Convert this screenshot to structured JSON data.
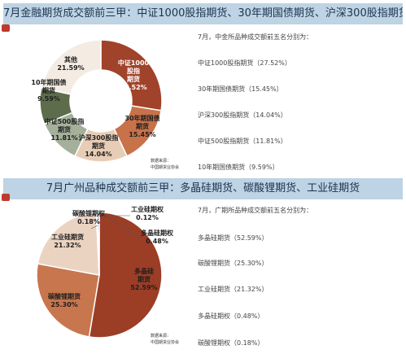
{
  "panel1": {
    "title": "7月金融期货成交额前三甲：中证1000股指期货、30年期国债期货、沪深300股指期货",
    "intro": "7月，中金所品种成交额前五名分别为：",
    "list": [
      "中证1000股指期货（27.52%）",
      "30年期国债期货（15.45%）",
      "沪深300股指期货（14.04%）",
      "中证500股指期货（11.81%）",
      "10年期国债期货（9.59%）"
    ],
    "source_label": "数据来源：",
    "source_value": "中国期货业协会"
  },
  "panel2": {
    "title": "7月广州品种成交额前三甲：多晶硅期货、碳酸锂期货、工业硅期货",
    "intro": "7月，广期所品种成交额前五名分别为：",
    "list": [
      "多晶硅期货（52.59%）",
      "碳酸锂期货（25.30%）",
      "工业硅期货（21.32%）",
      "多晶硅期权（0.48%）",
      "碳酸锂期权（0.18%）"
    ],
    "source_label": "数据来源：",
    "source_value": "中国期货业协会"
  },
  "chart_data": [
    {
      "type": "pie",
      "donut": true,
      "title": "",
      "slices": [
        {
          "name": "中证1000股指期货",
          "value": 27.52,
          "label": "27.52%",
          "color": "#a0432a",
          "label_color": "#ffffff"
        },
        {
          "name": "30年期国债期货",
          "value": 15.45,
          "label": "15.45%",
          "color": "#c8724a",
          "label_color": "#1f1f1f"
        },
        {
          "name": "沪深300股指期货",
          "value": 14.04,
          "label": "14.04%",
          "color": "#e8cdb6",
          "label_color": "#1f1f1f"
        },
        {
          "name": "中证500股指期货",
          "value": 11.81,
          "label": "11.81%",
          "color": "#a4b09a",
          "label_color": "#1f1f1f"
        },
        {
          "name": "10年期国债期货",
          "value": 9.59,
          "label": "9.59%",
          "color": "#5d6d4c",
          "label_color": "#1f1f1f"
        },
        {
          "name": "其他",
          "value": 21.59,
          "label": "21.59%",
          "color": "#f4ebe3",
          "label_color": "#1f1f1f"
        }
      ]
    },
    {
      "type": "pie",
      "donut": false,
      "title": "",
      "slices": [
        {
          "name": "多晶硅期货",
          "value": 52.59,
          "label": "52.59%",
          "color": "#9c3d26",
          "label_color": "#1f1f1f"
        },
        {
          "name": "碳酸锂期货",
          "value": 25.3,
          "label": "25.30%",
          "color": "#c8764e",
          "label_color": "#1f1f1f"
        },
        {
          "name": "工业硅期货",
          "value": 21.32,
          "label": "21.32%",
          "color": "#ebd3c2",
          "label_color": "#1f1f1f"
        },
        {
          "name": "碳酸锂期权",
          "value": 0.18,
          "label": "0.18%",
          "color": "#d9e4ee",
          "label_color": "#1f1f1f"
        },
        {
          "name": "工业硅期权",
          "value": 0.12,
          "label": "0.12%",
          "color": "#9db6cc",
          "label_color": "#1f1f1f"
        },
        {
          "name": "多晶硅期权",
          "value": 0.48,
          "label": "0.48%",
          "color": "#5d7890",
          "label_color": "#1f1f1f"
        }
      ]
    }
  ]
}
